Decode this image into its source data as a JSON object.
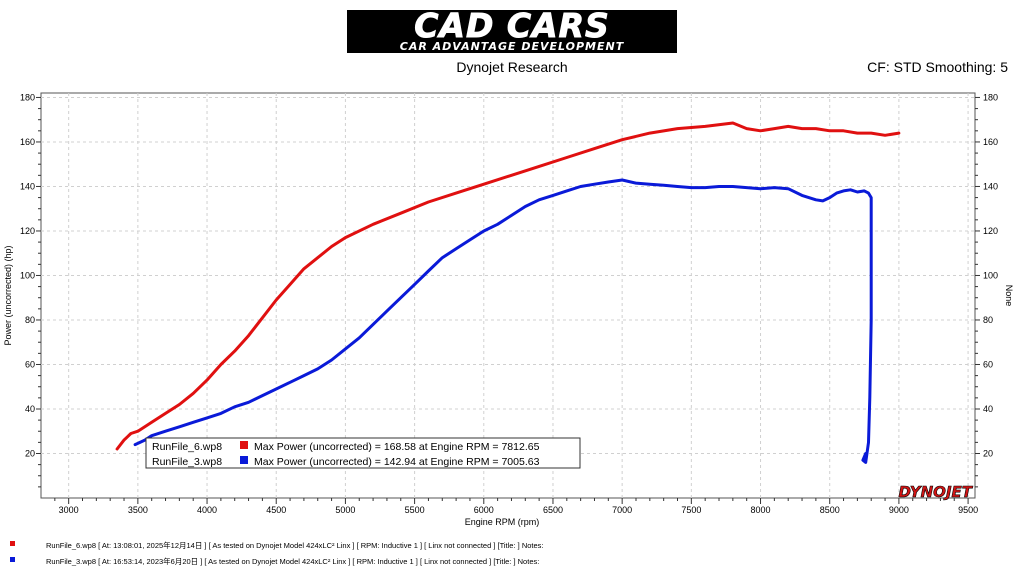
{
  "logo": {
    "main": "CAD CARS",
    "sub": "CAR ADVANTAGE DEVELOPMENT"
  },
  "subtitle": "Dynojet Research",
  "cf_text": "CF: STD Smoothing: 5",
  "brand": "DYNOJET",
  "colors": {
    "run6": "#e01010",
    "run3": "#0a1ad8",
    "grid": "#d0d0d0"
  },
  "chart_data": {
    "type": "line",
    "xlabel": "Engine RPM (rpm)",
    "ylabel": "Power (uncorrected) (hp)",
    "y2label": "None",
    "xlim": [
      2800,
      9550
    ],
    "ylim": [
      0,
      182
    ],
    "xticks": [
      3000,
      3500,
      4000,
      4500,
      5000,
      5500,
      6000,
      6500,
      7000,
      7500,
      8000,
      8500,
      9000,
      9500
    ],
    "yticks": [
      20,
      40,
      60,
      80,
      100,
      120,
      140,
      160,
      180
    ],
    "grid": true,
    "legend_position": "bottom-left",
    "series": [
      {
        "name": "RunFile_6.wp8",
        "legend": "Max Power (uncorrected) = 168.58 at Engine RPM = 7812.65",
        "color": "#e01010",
        "points": [
          [
            3350,
            22
          ],
          [
            3400,
            26
          ],
          [
            3450,
            29
          ],
          [
            3500,
            30
          ],
          [
            3600,
            34
          ],
          [
            3700,
            38
          ],
          [
            3800,
            42
          ],
          [
            3900,
            47
          ],
          [
            4000,
            53
          ],
          [
            4100,
            60
          ],
          [
            4200,
            66
          ],
          [
            4300,
            73
          ],
          [
            4400,
            81
          ],
          [
            4500,
            89
          ],
          [
            4600,
            96
          ],
          [
            4700,
            103
          ],
          [
            4800,
            108
          ],
          [
            4900,
            113
          ],
          [
            5000,
            117
          ],
          [
            5200,
            123
          ],
          [
            5400,
            128
          ],
          [
            5600,
            133
          ],
          [
            5800,
            137
          ],
          [
            6000,
            141
          ],
          [
            6200,
            145
          ],
          [
            6400,
            149
          ],
          [
            6600,
            153
          ],
          [
            6800,
            157
          ],
          [
            7000,
            161
          ],
          [
            7200,
            164
          ],
          [
            7400,
            166
          ],
          [
            7600,
            167
          ],
          [
            7800,
            168.5
          ],
          [
            7900,
            166
          ],
          [
            8000,
            165
          ],
          [
            8100,
            166
          ],
          [
            8200,
            167
          ],
          [
            8300,
            166
          ],
          [
            8400,
            166
          ],
          [
            8500,
            165
          ],
          [
            8600,
            165
          ],
          [
            8700,
            164
          ],
          [
            8800,
            164
          ],
          [
            8900,
            163
          ],
          [
            9000,
            164
          ]
        ]
      },
      {
        "name": "RunFile_3.wp8",
        "legend": "Max Power (uncorrected) = 142.94 at Engine RPM = 7005.63",
        "color": "#0a1ad8",
        "points": [
          [
            3480,
            24
          ],
          [
            3550,
            26
          ],
          [
            3600,
            28
          ],
          [
            3700,
            30
          ],
          [
            3800,
            32
          ],
          [
            3900,
            34
          ],
          [
            4000,
            36
          ],
          [
            4100,
            38
          ],
          [
            4200,
            41
          ],
          [
            4300,
            43
          ],
          [
            4400,
            46
          ],
          [
            4500,
            49
          ],
          [
            4600,
            52
          ],
          [
            4700,
            55
          ],
          [
            4800,
            58
          ],
          [
            4900,
            62
          ],
          [
            5000,
            67
          ],
          [
            5100,
            72
          ],
          [
            5200,
            78
          ],
          [
            5300,
            84
          ],
          [
            5400,
            90
          ],
          [
            5500,
            96
          ],
          [
            5600,
            102
          ],
          [
            5700,
            108
          ],
          [
            5800,
            112
          ],
          [
            5900,
            116
          ],
          [
            6000,
            120
          ],
          [
            6100,
            123
          ],
          [
            6200,
            127
          ],
          [
            6300,
            131
          ],
          [
            6400,
            134
          ],
          [
            6500,
            136
          ],
          [
            6600,
            138
          ],
          [
            6700,
            140
          ],
          [
            6800,
            141
          ],
          [
            6900,
            142
          ],
          [
            7000,
            142.9
          ],
          [
            7100,
            141.5
          ],
          [
            7200,
            141
          ],
          [
            7300,
            140.5
          ],
          [
            7400,
            140
          ],
          [
            7500,
            139.5
          ],
          [
            7600,
            139.5
          ],
          [
            7700,
            140
          ],
          [
            7800,
            140
          ],
          [
            7900,
            139.5
          ],
          [
            8000,
            139
          ],
          [
            8100,
            139.5
          ],
          [
            8200,
            139
          ],
          [
            8300,
            136
          ],
          [
            8400,
            134
          ],
          [
            8450,
            133.5
          ],
          [
            8500,
            135
          ],
          [
            8550,
            137
          ],
          [
            8600,
            138
          ],
          [
            8650,
            138.5
          ],
          [
            8700,
            137.5
          ],
          [
            8750,
            138
          ],
          [
            8780,
            137
          ],
          [
            8800,
            135
          ],
          [
            8800,
            80
          ],
          [
            8790,
            45
          ],
          [
            8780,
            25
          ],
          [
            8760,
            16
          ],
          [
            8740,
            17
          ],
          [
            8760,
            20
          ]
        ]
      }
    ]
  },
  "footer": [
    {
      "text": "RunFile_6.wp8  [  At:  13:08:01,  2025年12月14日 ]  [ As tested on Dynojet Model 424xLC² Linx ]  [ RPM: Inductive 1 ]  [ Linx not connected ]  [Title: ]   Notes:"
    },
    {
      "text": "RunFile_3.wp8  [  At:  16:53:14,  2023年6月20日 ]  [ As tested on Dynojet Model 424xLC² Linx ]  [ RPM: Inductive 1 ]  [ Linx not connected ]  [Title: ]   Notes:"
    }
  ]
}
